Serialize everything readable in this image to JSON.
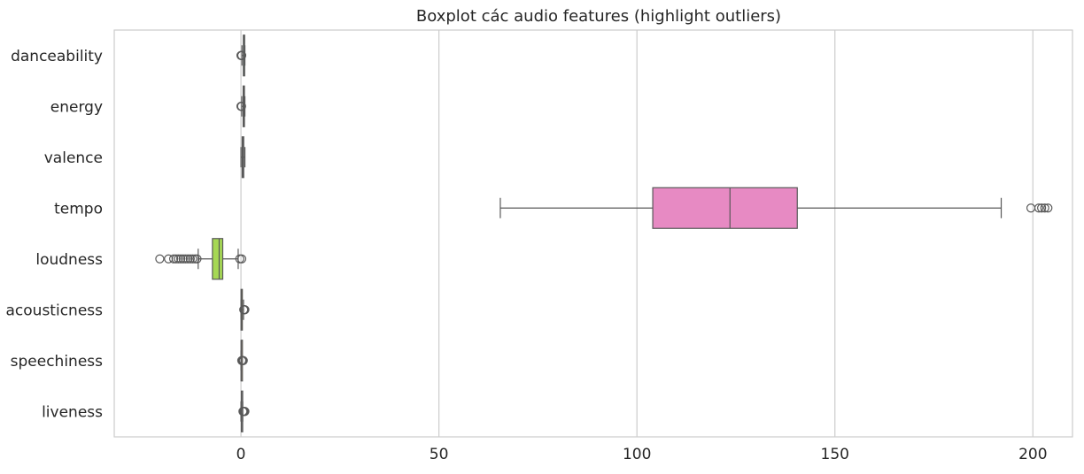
{
  "chart_data": {
    "type": "boxplot",
    "orientation": "horizontal",
    "title": "Boxplot các audio features (highlight outliers)",
    "xlim": [
      -32,
      210
    ],
    "x_ticks": [
      0,
      50,
      100,
      150,
      200
    ],
    "grid": true,
    "categories": [
      "danceability",
      "energy",
      "valence",
      "tempo",
      "loudness",
      "acousticness",
      "speechiness",
      "liveness"
    ],
    "series": [
      {
        "name": "danceability",
        "color": "#66c2a5",
        "min": 0.25,
        "q1": 0.6,
        "median": 0.7,
        "q3": 0.8,
        "max": 1.0,
        "outliers": [
          0.0,
          0.05,
          0.1,
          0.15,
          0.2
        ]
      },
      {
        "name": "energy",
        "color": "#fc8d62",
        "min": 0.2,
        "q1": 0.55,
        "median": 0.7,
        "q3": 0.82,
        "max": 1.0,
        "outliers": [
          0.0,
          0.05,
          0.1,
          0.15
        ]
      },
      {
        "name": "valence",
        "color": "#8da0cb",
        "min": 0.0,
        "q1": 0.3,
        "median": 0.5,
        "q3": 0.7,
        "max": 1.0,
        "outliers": []
      },
      {
        "name": "tempo",
        "color": "#e78ac3",
        "min": 65.5,
        "q1": 104,
        "median": 123.5,
        "q3": 140.5,
        "max": 192,
        "outliers": [
          199.5,
          201.5,
          202.2,
          203.0,
          203.8
        ]
      },
      {
        "name": "loudness",
        "color": "#a6d854",
        "min": -10.8,
        "q1": -7.2,
        "median": -5.5,
        "q3": -4.6,
        "max": -0.7,
        "outliers": [
          -20.5,
          -18.3,
          -17.0,
          -16.4,
          -15.8,
          -15.2,
          -14.6,
          -14.0,
          -13.4,
          -12.8,
          -12.2,
          -11.6,
          -11.1,
          -0.3,
          0.2
        ]
      },
      {
        "name": "acousticness",
        "color": "#ffd92f",
        "min": 0.0,
        "q1": 0.02,
        "median": 0.1,
        "q3": 0.3,
        "max": 0.65,
        "outliers": [
          0.7,
          0.8,
          0.9,
          1.0
        ]
      },
      {
        "name": "speechiness",
        "color": "#e5c494",
        "min": 0.0,
        "q1": 0.04,
        "median": 0.06,
        "q3": 0.1,
        "max": 0.18,
        "outliers": [
          0.2,
          0.3,
          0.4,
          0.5,
          0.6
        ]
      },
      {
        "name": "liveness",
        "color": "#b3b3b3",
        "min": 0.0,
        "q1": 0.1,
        "median": 0.13,
        "q3": 0.25,
        "max": 0.45,
        "outliers": [
          0.5,
          0.6,
          0.7,
          0.8,
          0.9,
          1.0
        ]
      }
    ]
  }
}
